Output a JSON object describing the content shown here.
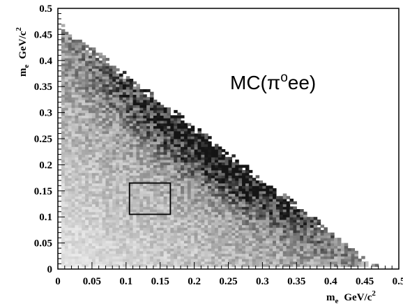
{
  "chart_data": {
    "type": "heatmap",
    "title": "",
    "annotation": {
      "prefix": "MC(",
      "symbol": "π",
      "superscript": "o",
      "suffix": "ee)"
    },
    "xlabel": {
      "main": "m",
      "sub": "e",
      "unit": "GeV/c",
      "sup": "2"
    },
    "ylabel": {
      "main": "m",
      "sub": "e",
      "unit": "GeV/c",
      "sup": "2"
    },
    "xlim": [
      0,
      0.5
    ],
    "ylim": [
      0,
      0.5
    ],
    "x_ticks": [
      "0",
      "0.05",
      "0.1",
      "0.15",
      "0.2",
      "0.25",
      "0.3",
      "0.35",
      "0.4",
      "0.45",
      "0.5"
    ],
    "y_ticks": [
      "0",
      "0.05",
      "0.1",
      "0.15",
      "0.2",
      "0.25",
      "0.3",
      "0.35",
      "0.4",
      "0.45",
      "0.5"
    ],
    "density_region": "triangle bounded by x+y <= 0.475, densest near the diagonal edge around x=0.25, y=0.22",
    "colormap": [
      "#ffffff",
      "#101010"
    ],
    "grid": false,
    "signal_box": {
      "x": [
        0.105,
        0.165
      ],
      "y": [
        0.105,
        0.165
      ]
    }
  }
}
